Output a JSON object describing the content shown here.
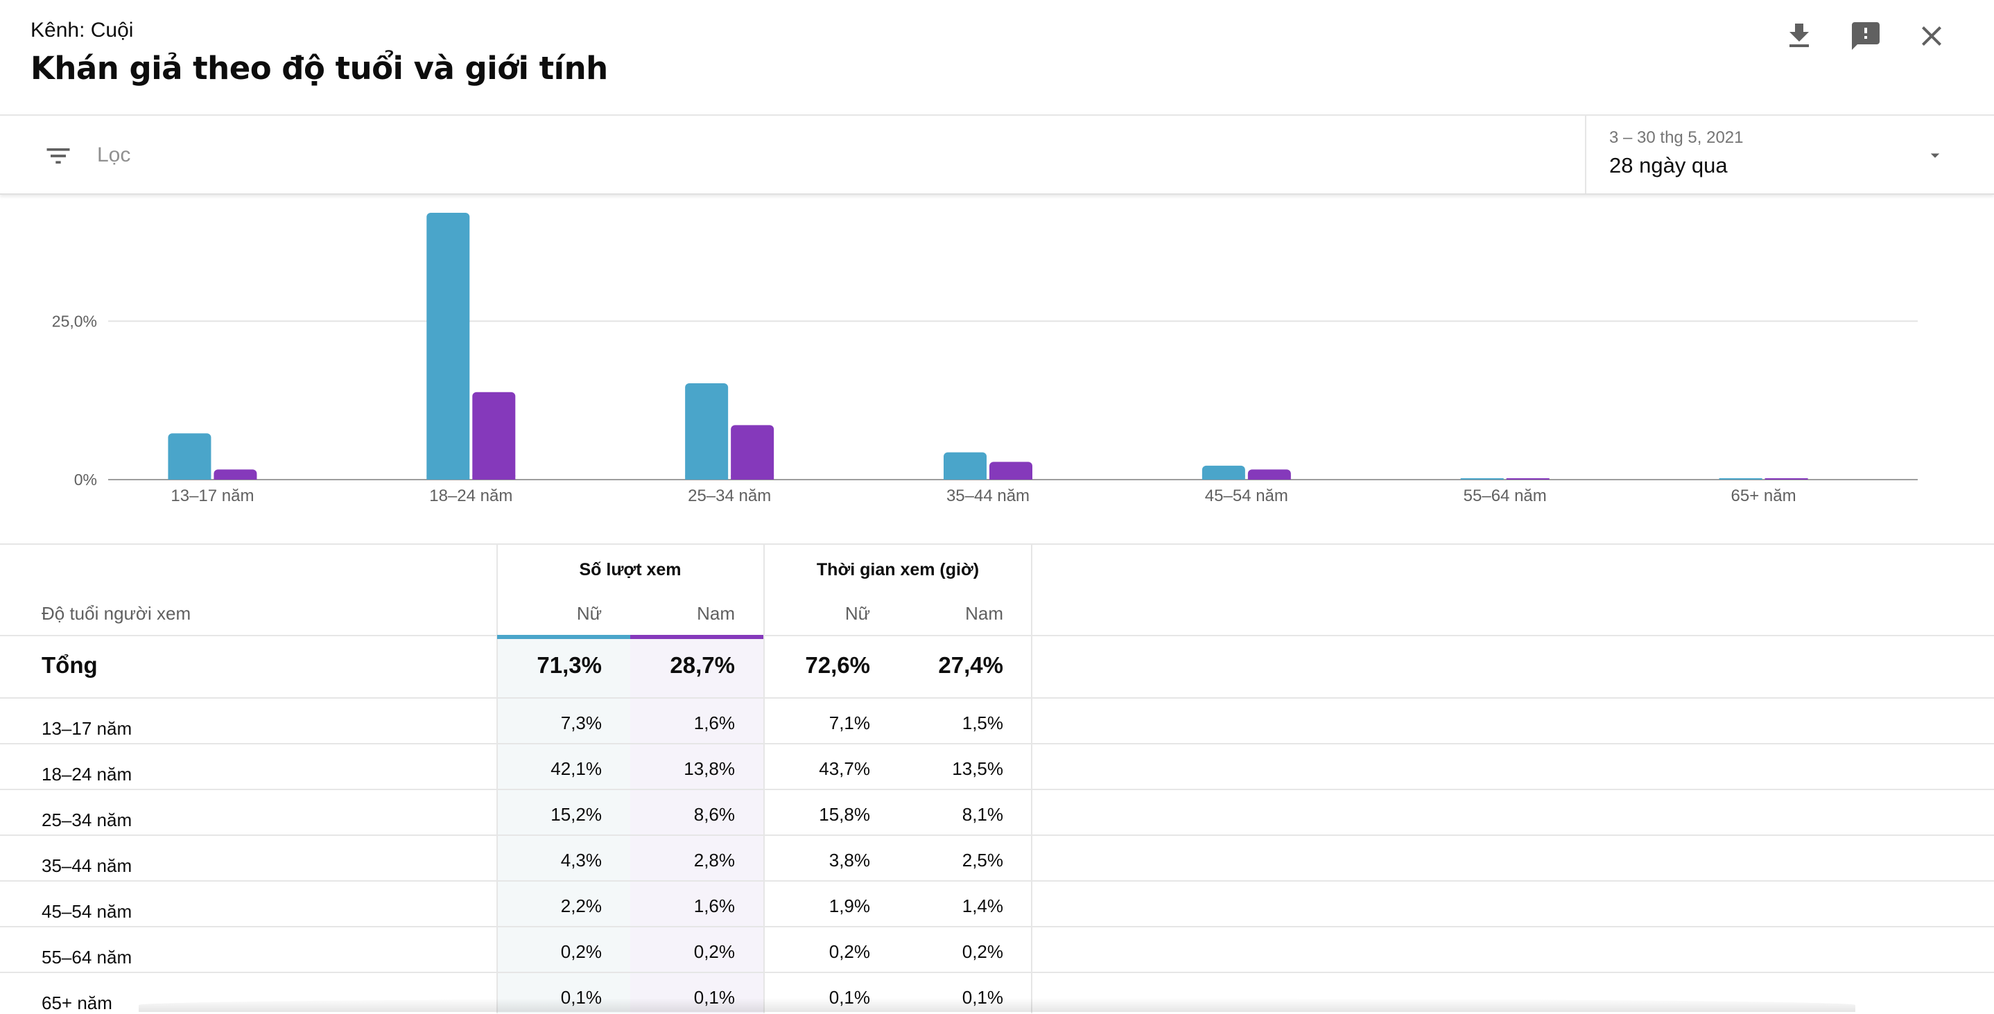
{
  "header": {
    "channel": "Kênh: Cuội",
    "title": "Khán giả theo độ tuổi và giới tính",
    "icons": [
      "download-icon",
      "feedback-icon",
      "close-icon"
    ]
  },
  "filter": {
    "label": "Lọc",
    "date_range": "3 – 30 thg 5, 2021",
    "date_preset": "28 ngày qua"
  },
  "colors": {
    "female": "#4aa5ca",
    "male": "#8539bb",
    "grid": "#e3e3e3",
    "axis": "#9e9e9e"
  },
  "chart_data": {
    "type": "bar",
    "categories": [
      "13–17 năm",
      "18–24 năm",
      "25–34 năm",
      "35–44 năm",
      "45–54 năm",
      "55–64 năm",
      "65+ năm"
    ],
    "series": [
      {
        "values": [
          7.3,
          42.1,
          15.2,
          4.3,
          2.2,
          0.2,
          0.1
        ],
        "color": "#4aa5ca"
      },
      {
        "values": [
          1.6,
          13.8,
          8.6,
          2.8,
          1.6,
          0.2,
          0.1
        ],
        "color": "#8539bb"
      }
    ],
    "yticks": [
      "25,0%",
      "0%"
    ],
    "ytick_values": [
      25,
      0
    ],
    "ylim": [
      0,
      42.1
    ],
    "grid": true,
    "legend": "none"
  },
  "table": {
    "row_header": "Độ tuổi người xem",
    "groups": [
      "Số lượt xem",
      "Thời gian xem (giờ)"
    ],
    "sub_headers": [
      "Nữ",
      "Nam",
      "Nữ",
      "Nam"
    ],
    "total": {
      "label": "Tổng",
      "values": [
        "71,3%",
        "28,7%",
        "72,6%",
        "27,4%"
      ]
    },
    "rows": [
      {
        "label": "13–17 năm",
        "values": [
          "7,3%",
          "1,6%",
          "7,1%",
          "1,5%"
        ]
      },
      {
        "label": "18–24 năm",
        "values": [
          "42,1%",
          "13,8%",
          "43,7%",
          "13,5%"
        ]
      },
      {
        "label": "25–34 năm",
        "values": [
          "15,2%",
          "8,6%",
          "15,8%",
          "8,1%"
        ]
      },
      {
        "label": "35–44 năm",
        "values": [
          "4,3%",
          "2,8%",
          "3,8%",
          "2,5%"
        ]
      },
      {
        "label": "45–54 năm",
        "values": [
          "2,2%",
          "1,6%",
          "1,9%",
          "1,4%"
        ]
      },
      {
        "label": "55–64 năm",
        "values": [
          "0,2%",
          "0,2%",
          "0,2%",
          "0,2%"
        ]
      },
      {
        "label": "65+ năm",
        "values": [
          "0,1%",
          "0,1%",
          "0,1%",
          "0,1%"
        ]
      }
    ]
  }
}
